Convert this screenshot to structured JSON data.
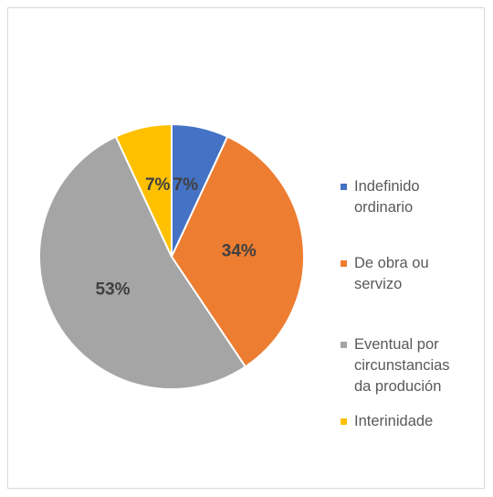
{
  "chart_data": {
    "type": "pie",
    "categories": [
      "Indefinido ordinario",
      "De obra ou servizo",
      "Eventual por circunstancias da produción",
      "Interinidade"
    ],
    "values": [
      7,
      34,
      53,
      7
    ],
    "value_labels": [
      "7%",
      "34%",
      "53%",
      "7%"
    ],
    "colors": [
      "#4472c4",
      "#ed7d31",
      "#a5a5a5",
      "#ffc000"
    ],
    "legend": "right"
  }
}
